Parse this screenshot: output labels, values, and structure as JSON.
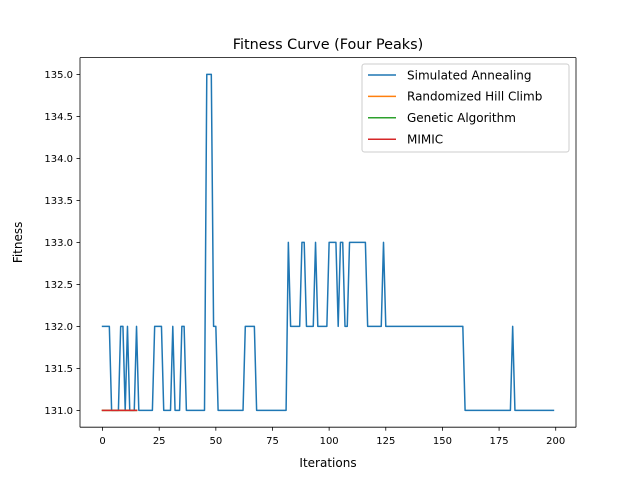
{
  "chart_data": {
    "type": "line",
    "title": "Fitness Curve (Four Peaks)",
    "xlabel": "Iterations",
    "ylabel": "Fitness",
    "xlim": [
      -9.95,
      208.95
    ],
    "ylim": [
      130.8,
      135.2
    ],
    "xticks": [
      0,
      25,
      50,
      75,
      100,
      125,
      150,
      175,
      200
    ],
    "xtick_labels": [
      "0",
      "25",
      "50",
      "75",
      "100",
      "125",
      "150",
      "175",
      "200"
    ],
    "yticks": [
      131.0,
      131.5,
      132.0,
      132.5,
      133.0,
      133.5,
      134.0,
      134.5,
      135.0
    ],
    "ytick_labels": [
      "131.0",
      "131.5",
      "132.0",
      "132.5",
      "133.0",
      "133.5",
      "134.0",
      "134.5",
      "135.0"
    ],
    "grid": false,
    "legend_position": "top-right",
    "series": [
      {
        "name": "Simulated Annealing",
        "color": "#1f77b4",
        "x": [
          0,
          1,
          2,
          3,
          4,
          5,
          6,
          7,
          8,
          9,
          10,
          11,
          12,
          13,
          14,
          15,
          16,
          17,
          18,
          19,
          20,
          21,
          22,
          23,
          24,
          25,
          26,
          27,
          28,
          29,
          30,
          31,
          32,
          33,
          34,
          35,
          36,
          37,
          38,
          39,
          40,
          41,
          42,
          43,
          44,
          45,
          46,
          47,
          48,
          49,
          50,
          51,
          52,
          53,
          54,
          55,
          56,
          57,
          58,
          59,
          60,
          61,
          62,
          63,
          64,
          65,
          66,
          67,
          68,
          69,
          70,
          71,
          72,
          73,
          74,
          75,
          76,
          77,
          78,
          79,
          80,
          81,
          82,
          83,
          84,
          85,
          86,
          87,
          88,
          89,
          90,
          91,
          92,
          93,
          94,
          95,
          96,
          97,
          98,
          99,
          100,
          101,
          102,
          103,
          104,
          105,
          106,
          107,
          108,
          109,
          110,
          111,
          112,
          113,
          114,
          115,
          116,
          117,
          118,
          119,
          120,
          121,
          122,
          123,
          124,
          125,
          126,
          127,
          128,
          129,
          130,
          131,
          132,
          133,
          134,
          135,
          136,
          137,
          138,
          139,
          140,
          141,
          142,
          143,
          144,
          145,
          146,
          147,
          148,
          149,
          150,
          151,
          152,
          153,
          154,
          155,
          156,
          157,
          158,
          159,
          160,
          161,
          162,
          163,
          164,
          165,
          166,
          167,
          168,
          169,
          170,
          171,
          172,
          173,
          174,
          175,
          176,
          177,
          178,
          179,
          180,
          181,
          182,
          183,
          184,
          185,
          186,
          187,
          188,
          189,
          190,
          191,
          192,
          193,
          194,
          195,
          196,
          197,
          198,
          199
        ],
        "y": [
          132,
          132,
          132,
          132,
          131,
          131,
          131,
          131,
          132,
          132,
          131,
          132,
          131,
          131,
          131,
          132,
          131,
          131,
          131,
          131,
          131,
          131,
          131,
          132,
          132,
          132,
          132,
          131,
          131,
          131,
          131,
          132,
          131,
          131,
          131,
          132,
          132,
          131,
          131,
          131,
          131,
          131,
          131,
          131,
          131,
          131,
          135,
          135,
          135,
          132,
          132,
          131,
          131,
          131,
          131,
          131,
          131,
          131,
          131,
          131,
          131,
          131,
          131,
          132,
          132,
          132,
          132,
          132,
          131,
          131,
          131,
          131,
          131,
          131,
          131,
          131,
          131,
          131,
          131,
          131,
          131,
          131,
          133,
          132,
          132,
          132,
          132,
          132,
          133,
          133,
          132,
          132,
          132,
          132,
          133,
          132,
          132,
          132,
          132,
          132,
          133,
          133,
          133,
          133,
          132,
          133,
          133,
          132,
          132,
          133,
          133,
          133,
          133,
          133,
          133,
          133,
          133,
          132,
          132,
          132,
          132,
          132,
          132,
          132,
          133,
          132,
          132,
          132,
          132,
          132,
          132,
          132,
          132,
          132,
          132,
          132,
          132,
          132,
          132,
          132,
          132,
          132,
          132,
          132,
          132,
          132,
          132,
          132,
          132,
          132,
          132,
          132,
          132,
          132,
          132,
          132,
          132,
          132,
          132,
          132,
          131,
          131,
          131,
          131,
          131,
          131,
          131,
          131,
          131,
          131,
          131,
          131,
          131,
          131,
          131,
          131,
          131,
          131,
          131,
          131,
          131,
          132,
          131,
          131,
          131,
          131,
          131,
          131,
          131,
          131,
          131,
          131,
          131,
          131,
          131,
          131,
          131,
          131,
          131,
          131
        ]
      },
      {
        "name": "Randomized Hill Climb",
        "color": "#ff7f0e",
        "x": [
          0,
          1,
          2,
          3,
          4,
          5,
          6,
          7,
          8,
          9,
          10,
          11,
          12,
          13,
          14,
          15
        ],
        "y": [
          131,
          131,
          131,
          131,
          131,
          131,
          131,
          131,
          131,
          131,
          131,
          131,
          131,
          131,
          131,
          131
        ]
      },
      {
        "name": "Genetic Algorithm",
        "color": "#2ca02c",
        "x": [
          0,
          1,
          2,
          3,
          4,
          5,
          6,
          7,
          8,
          9,
          10,
          11,
          12,
          13,
          14,
          15
        ],
        "y": [
          131,
          131,
          131,
          131,
          131,
          131,
          131,
          131,
          131,
          131,
          131,
          131,
          131,
          131,
          131,
          131
        ]
      },
      {
        "name": "MIMIC",
        "color": "#d62728",
        "x": [
          0,
          1,
          2,
          3,
          4,
          5,
          6,
          7,
          8,
          9,
          10,
          11,
          12,
          13,
          14,
          15
        ],
        "y": [
          131,
          131,
          131,
          131,
          131,
          131,
          131,
          131,
          131,
          131,
          131,
          131,
          131,
          131,
          131,
          131
        ]
      }
    ]
  }
}
